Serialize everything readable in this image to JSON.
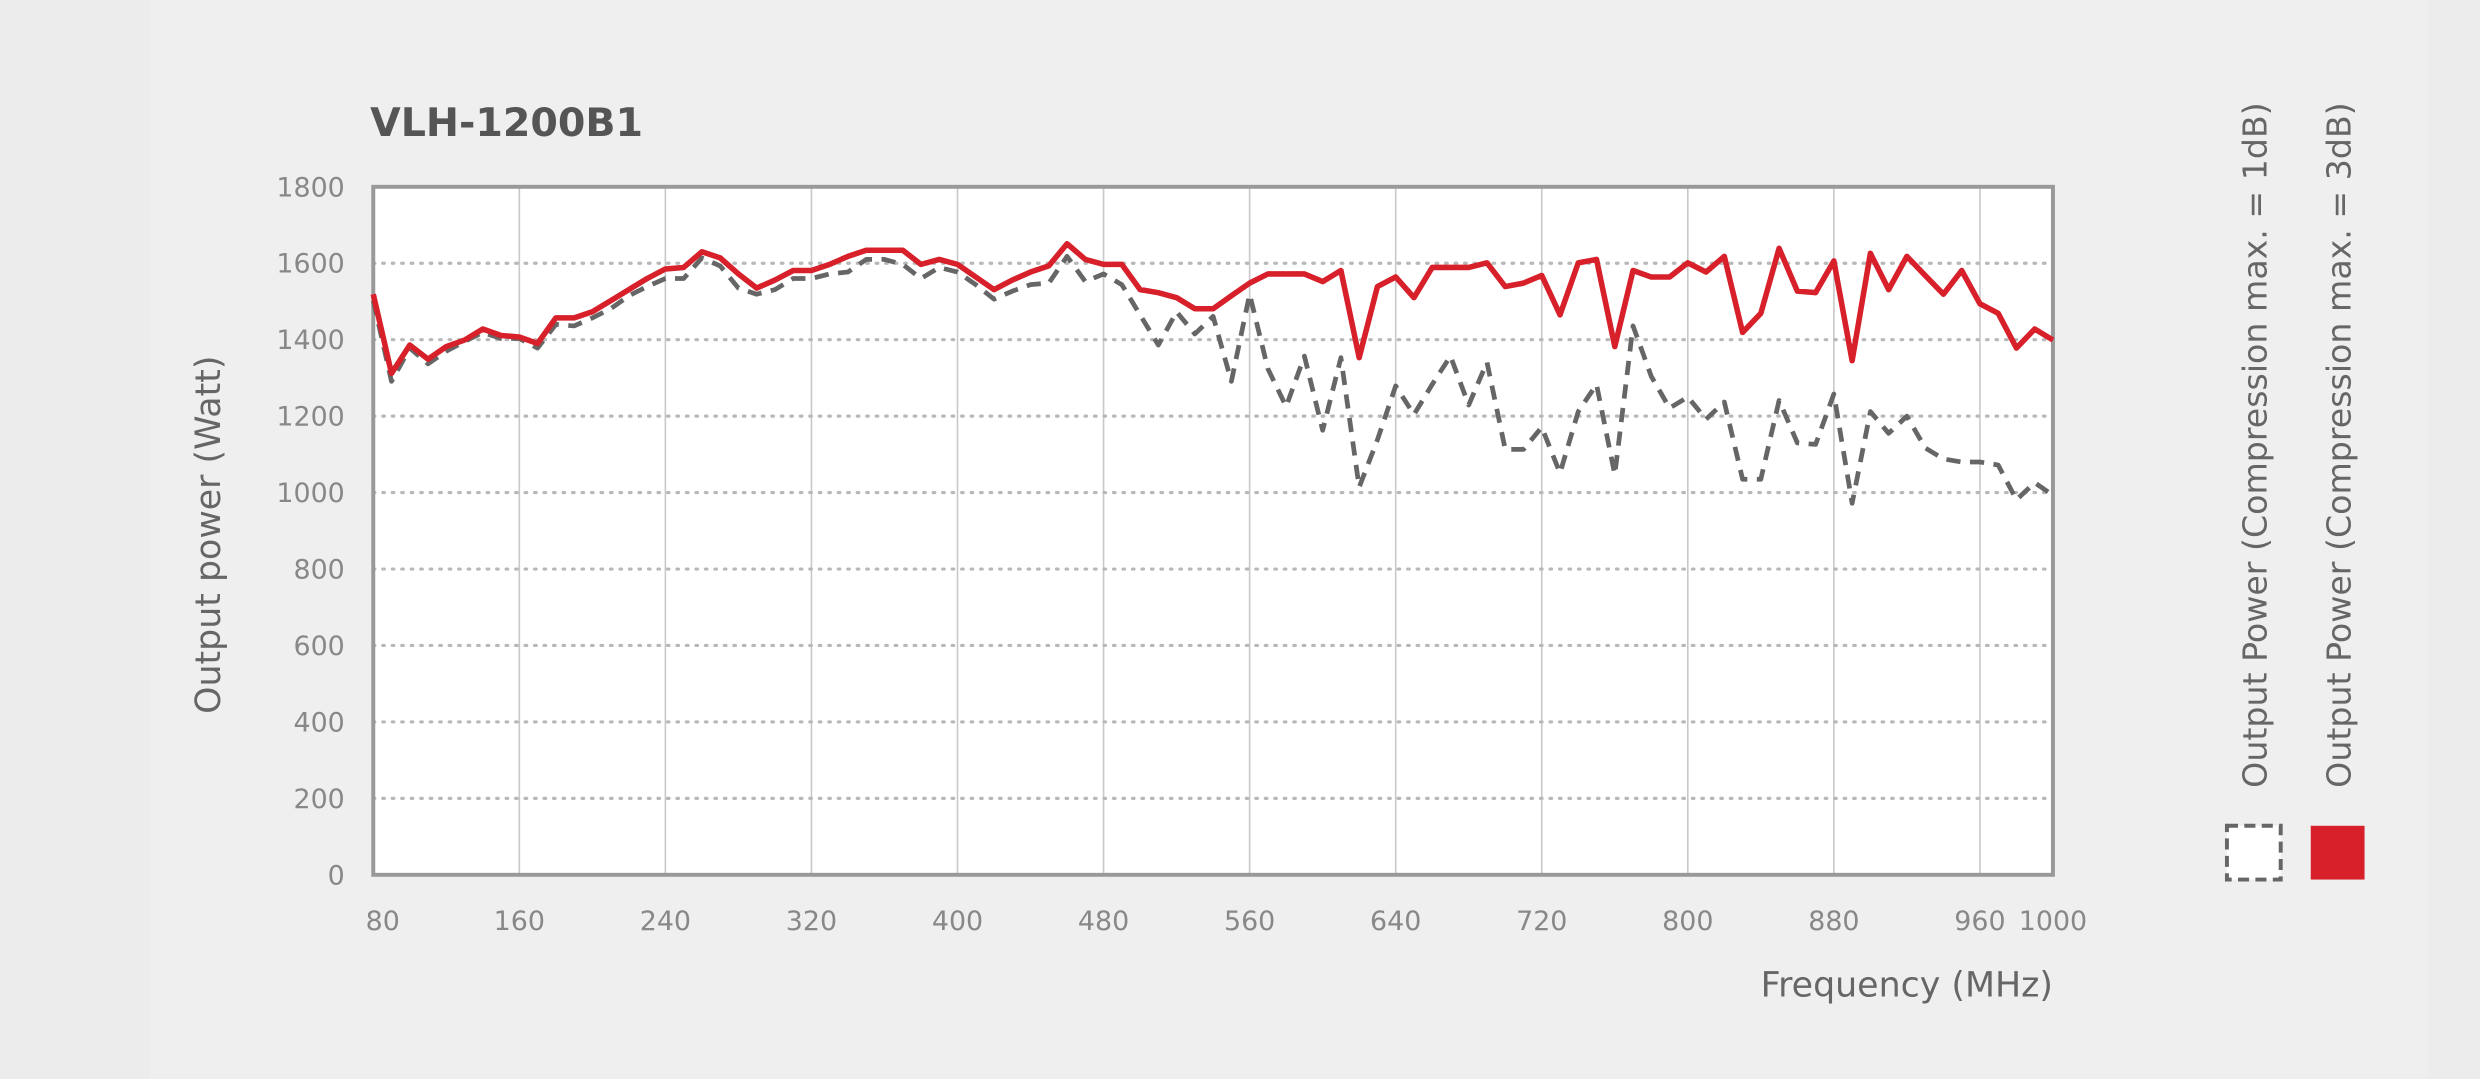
{
  "chart_data": {
    "type": "line",
    "title": "VLH-1200B1",
    "x_label": "Frequency (MHz)",
    "y_label": "Output power (Watt)",
    "xlim": [
      80,
      1000
    ],
    "xticks": [
      80,
      160,
      240,
      320,
      400,
      480,
      560,
      640,
      720,
      800,
      880,
      960,
      1000
    ],
    "ylim": [
      0,
      1800
    ],
    "yticks": [
      0,
      200,
      400,
      600,
      800,
      1000,
      1200,
      1400,
      1600,
      1800
    ],
    "grid": true,
    "legend": "right",
    "x": [
      80,
      90,
      100,
      110,
      120,
      130,
      140,
      150,
      160,
      170,
      180,
      190,
      200,
      210,
      220,
      230,
      240,
      250,
      260,
      270,
      280,
      290,
      300,
      310,
      320,
      330,
      340,
      350,
      360,
      370,
      380,
      390,
      400,
      410,
      420,
      430,
      440,
      450,
      460,
      470,
      480,
      490,
      500,
      510,
      520,
      530,
      540,
      550,
      560,
      570,
      580,
      590,
      600,
      610,
      620,
      630,
      640,
      650,
      660,
      670,
      680,
      690,
      700,
      710,
      720,
      730,
      740,
      750,
      760,
      770,
      780,
      790,
      800,
      810,
      820,
      830,
      840,
      850,
      860,
      870,
      880,
      890,
      900,
      910,
      920,
      930,
      940,
      950,
      960,
      970,
      980,
      990,
      1000
    ],
    "series": [
      {
        "name": "Output Power (Compression max. = 1dB)",
        "color": "#666666",
        "dashed": true,
        "values": [
          1502,
          1291,
          1378,
          1337,
          1370,
          1395,
          1419,
          1403,
          1403,
          1378,
          1440,
          1436,
          1457,
          1481,
          1515,
          1539,
          1560,
          1560,
          1614,
          1593,
          1535,
          1519,
          1531,
          1560,
          1560,
          1572,
          1577,
          1610,
          1610,
          1597,
          1560,
          1589,
          1577,
          1544,
          1506,
          1527,
          1544,
          1548,
          1618,
          1552,
          1572,
          1544,
          1465,
          1386,
          1473,
          1415,
          1461,
          1291,
          1519,
          1324,
          1225,
          1357,
          1163,
          1353,
          1014,
          1138,
          1279,
          1204,
          1283,
          1357,
          1229,
          1341,
          1113,
          1113,
          1171,
          1051,
          1212,
          1283,
          1047,
          1436,
          1304,
          1221,
          1250,
          1192,
          1237,
          1035,
          1035,
          1241,
          1130,
          1126,
          1258,
          972,
          1212,
          1155,
          1200,
          1117,
          1088,
          1080,
          1080,
          1072,
          981,
          1026,
          993
        ]
      },
      {
        "name": "Output Power (Compression max. = 3dB)",
        "color": "#d7202a",
        "dashed": false,
        "values": [
          1519,
          1312,
          1386,
          1349,
          1382,
          1399,
          1428,
          1411,
          1407,
          1390,
          1457,
          1457,
          1473,
          1502,
          1531,
          1560,
          1585,
          1589,
          1630,
          1614,
          1572,
          1535,
          1556,
          1581,
          1581,
          1597,
          1618,
          1634,
          1634,
          1634,
          1597,
          1610,
          1597,
          1564,
          1531,
          1556,
          1577,
          1593,
          1651,
          1610,
          1597,
          1597,
          1531,
          1523,
          1510,
          1481,
          1481,
          1515,
          1548,
          1572,
          1572,
          1572,
          1552,
          1581,
          1353,
          1539,
          1564,
          1510,
          1589,
          1589,
          1589,
          1601,
          1539,
          1548,
          1568,
          1465,
          1601,
          1610,
          1382,
          1581,
          1564,
          1564,
          1601,
          1577,
          1618,
          1419,
          1469,
          1639,
          1527,
          1523,
          1606,
          1345,
          1626,
          1531,
          1618,
          1568,
          1519,
          1581,
          1494,
          1469,
          1378,
          1428,
          1399
        ]
      }
    ]
  }
}
